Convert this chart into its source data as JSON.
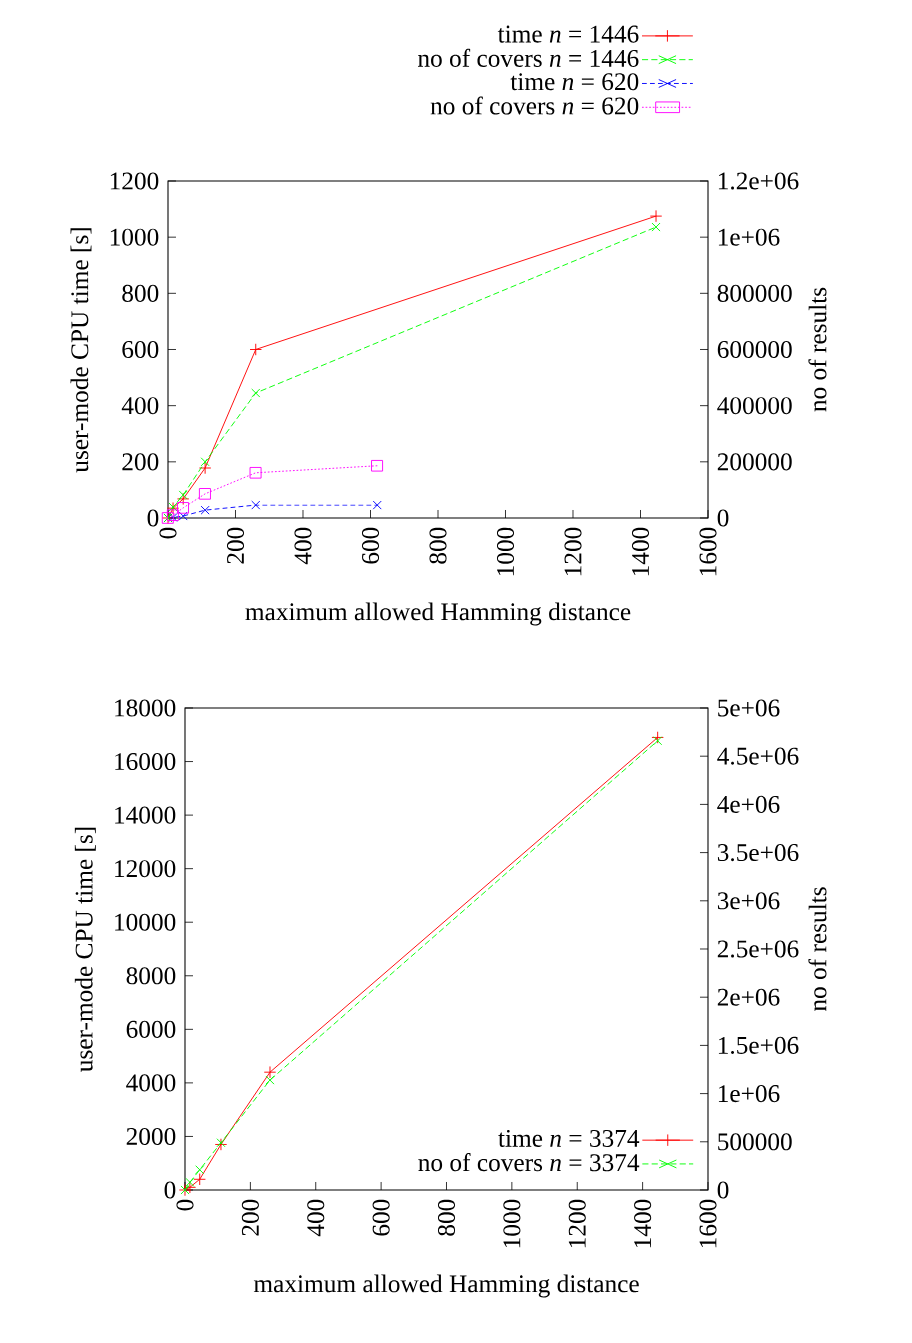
{
  "chart_data": [
    {
      "type": "line",
      "xlabel": "maximum allowed Hamming distance",
      "ylabel": "user-mode CPU time [s]",
      "y2label": "no of results",
      "xlim": [
        0,
        1600
      ],
      "xticks": [
        0,
        200,
        400,
        600,
        800,
        1000,
        1200,
        1400,
        1600
      ],
      "ylim": [
        0,
        1200
      ],
      "yticks": [
        0,
        200,
        400,
        600,
        800,
        1000,
        1200
      ],
      "y2lim": [
        0,
        1200000
      ],
      "y2ticks": [
        0,
        200000,
        400000,
        600000,
        800000,
        {
          "value": 1000000,
          "label": "1e+06"
        },
        {
          "value": 1200000,
          "label": "1.2e+06"
        }
      ],
      "legend": "top",
      "series": [
        {
          "name": "time *n* = 1446",
          "color": "#ff0000",
          "marker": "plus",
          "line_style": "solid",
          "x": [
            0,
            15,
            45,
            110,
            260,
            1446
          ],
          "values": [
            0,
            35,
            68,
            178,
            600,
            1075
          ]
        },
        {
          "name": "no of covers *n* = 1446",
          "color": "#00ff00",
          "marker": "cross",
          "line_style": "dashed",
          "axis": "y2",
          "x": [
            0,
            15,
            45,
            110,
            260,
            1446
          ],
          "values": [
            0,
            39000,
            82000,
            200000,
            445000,
            1036000
          ]
        },
        {
          "name": "time *n* = 620",
          "color": "#0000ff",
          "marker": "cross",
          "line_style": "dashed",
          "x": [
            0,
            15,
            45,
            110,
            260,
            620
          ],
          "values": [
            0,
            2,
            7,
            28,
            46,
            46
          ]
        },
        {
          "name": "no of covers *n* = 620",
          "color": "#ff00ff",
          "marker": "square",
          "line_style": "dotted",
          "axis": "y2",
          "x": [
            0,
            15,
            45,
            110,
            260,
            620
          ],
          "values": [
            0,
            10000,
            36000,
            86000,
            161000,
            186000
          ]
        }
      ]
    },
    {
      "type": "line",
      "xlabel": "maximum allowed Hamming distance",
      "ylabel": "user-mode CPU time [s]",
      "y2label": "no of results",
      "xlim": [
        0,
        1600
      ],
      "xticks": [
        0,
        200,
        400,
        600,
        800,
        1000,
        1200,
        1400,
        1600
      ],
      "ylim": [
        0,
        18000
      ],
      "yticks": [
        0,
        2000,
        4000,
        6000,
        8000,
        10000,
        12000,
        14000,
        16000,
        18000
      ],
      "y2lim": [
        0,
        5000000
      ],
      "y2ticks": [
        0,
        500000,
        {
          "value": 1000000,
          "label": "1e+06"
        },
        {
          "value": 1500000,
          "label": "1.5e+06"
        },
        {
          "value": 2000000,
          "label": "2e+06"
        },
        {
          "value": 2500000,
          "label": "2.5e+06"
        },
        {
          "value": 3000000,
          "label": "3e+06"
        },
        {
          "value": 3500000,
          "label": "3.5e+06"
        },
        {
          "value": 4000000,
          "label": "4e+06"
        },
        {
          "value": 4500000,
          "label": "4.5e+06"
        },
        {
          "value": 5000000,
          "label": "5e+06"
        }
      ],
      "legend": "bottom right",
      "series": [
        {
          "name": "time *n* = 3374",
          "color": "#ff0000",
          "marker": "plus",
          "line_style": "solid",
          "x": [
            0,
            15,
            45,
            110,
            260,
            1446
          ],
          "values": [
            0,
            100,
            400,
            1700,
            4400,
            16900
          ]
        },
        {
          "name": "no of covers *n* = 3374",
          "color": "#00ff00",
          "marker": "cross",
          "line_style": "dashed",
          "axis": "y2",
          "x": [
            0,
            15,
            45,
            110,
            260,
            1446
          ],
          "values": [
            0,
            80000,
            210000,
            490000,
            1140000,
            4660000
          ]
        }
      ]
    }
  ]
}
